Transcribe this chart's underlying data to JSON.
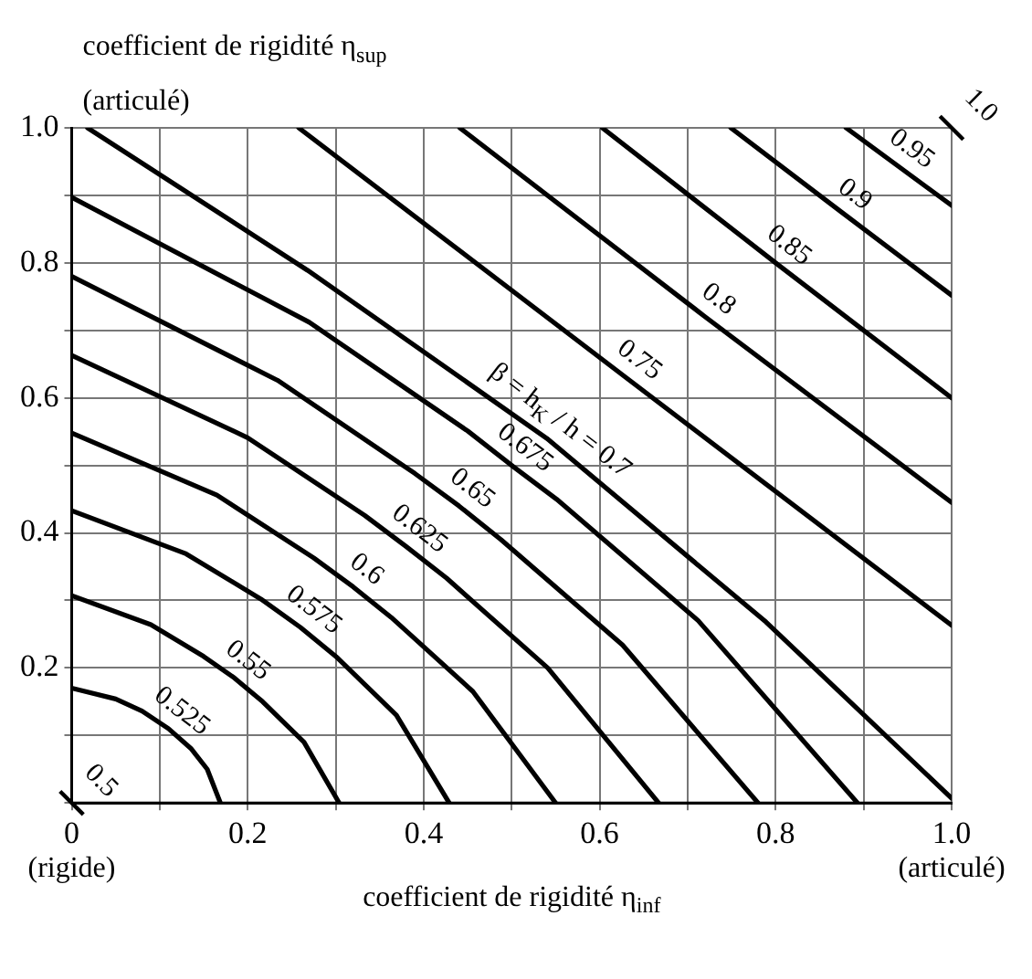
{
  "chart_data": {
    "type": "line",
    "xlabel": "coefficient de rigidité η$_{inf}$",
    "ylabel": "coefficient de rigidité η$_{sup}$",
    "annotations": [
      "(articulé)",
      "(rigide)",
      "(articulé)"
    ],
    "xlim": [
      0,
      1
    ],
    "ylim": [
      0,
      1
    ],
    "xticks": [
      0,
      {
        "value": 0.1,
        "label": null
      },
      0.2,
      {
        "value": 0.3,
        "label": null
      },
      0.4,
      {
        "value": 0.5,
        "label": null
      },
      0.6,
      {
        "value": 0.7,
        "label": null
      },
      0.8,
      {
        "value": 0.9,
        "label": null
      },
      {
        "value": 1,
        "label": "1.0"
      }
    ],
    "yticks": [
      {
        "value": 0,
        "label": null
      },
      {
        "value": 0.1,
        "label": null
      },
      0.2,
      {
        "value": 0.3,
        "label": null
      },
      0.4,
      {
        "value": 0.5,
        "label": null
      },
      0.6,
      {
        "value": 0.7,
        "label": null
      },
      0.8,
      {
        "value": 0.9,
        "label": null
      },
      {
        "value": 1,
        "label": "1.0"
      }
    ],
    "grid": true,
    "legend": false,
    "marker": "none",
    "line_style": "solid",
    "series": [
      {
        "name": "0.5",
        "type": "scatter",
        "marker": "cross",
        "color": "#000000",
        "x": [
          0
        ],
        "values": [
          0
        ]
      },
      {
        "name": "0.525",
        "color": "#000000",
        "x": [
          0,
          0.05,
          0.08,
          0.11,
          0.136,
          0.154,
          0.169
        ],
        "values": [
          0.17,
          0.154,
          0.136,
          0.11,
          0.08,
          0.05,
          0
        ]
      },
      {
        "name": "0.55",
        "color": "#000000",
        "x": [
          0,
          0.09,
          0.15,
          0.185,
          0.217,
          0.264,
          0.304
        ],
        "values": [
          0.307,
          0.264,
          0.217,
          0.185,
          0.15,
          0.09,
          0
        ]
      },
      {
        "name": "0.575",
        "color": "#000000",
        "x": [
          0,
          0.13,
          0.215,
          0.26,
          0.302,
          0.369,
          0.429
        ],
        "values": [
          0.433,
          0.369,
          0.302,
          0.26,
          0.215,
          0.13,
          0
        ]
      },
      {
        "name": "0.6",
        "color": "#000000",
        "x": [
          0,
          0.165,
          0.275,
          0.32,
          0.363,
          0.456,
          0.55
        ],
        "values": [
          0.548,
          0.456,
          0.363,
          0.32,
          0.275,
          0.165,
          0
        ]
      },
      {
        "name": "0.625",
        "color": "#000000",
        "x": [
          0,
          0.2,
          0.333,
          0.38,
          0.426,
          0.541,
          0.667
        ],
        "values": [
          0.663,
          0.541,
          0.426,
          0.38,
          0.333,
          0.2,
          0
        ]
      },
      {
        "name": "0.65",
        "color": "#000000",
        "x": [
          0,
          0.234,
          0.39,
          0.44,
          0.488,
          0.626,
          0.78
        ],
        "values": [
          0.78,
          0.626,
          0.488,
          0.44,
          0.39,
          0.234,
          0
        ]
      },
      {
        "name": "0.675",
        "color": "#000000",
        "x": [
          0,
          0.27,
          0.45,
          0.5,
          0.551,
          0.712,
          0.893
        ],
        "values": [
          0.897,
          0.712,
          0.551,
          0.5,
          0.45,
          0.27,
          0
        ]
      },
      {
        "name": "β = h$_{K}$ / h = 0.7",
        "color": "#000000",
        "x": [
          0.018,
          0.268,
          0.54,
          0.789,
          1
        ],
        "values": [
          1,
          0.789,
          0.54,
          0.268,
          0.007
        ]
      },
      {
        "name": "0.75",
        "color": "#000000",
        "x": [
          0.258,
          0.63,
          1
        ],
        "values": [
          1,
          0.63,
          0.263
        ]
      },
      {
        "name": "0.8",
        "color": "#000000",
        "x": [
          0.441,
          0.72,
          1
        ],
        "values": [
          1,
          0.72,
          0.445
        ]
      },
      {
        "name": "0.85",
        "color": "#000000",
        "x": [
          0.603,
          0.8,
          1
        ],
        "values": [
          1,
          0.8,
          0.6
        ]
      },
      {
        "name": "0.9",
        "color": "#000000",
        "x": [
          0.749,
          0.875,
          1
        ],
        "values": [
          1,
          0.875,
          0.752
        ]
      },
      {
        "name": "0.95",
        "color": "#000000",
        "x": [
          0.88,
          1
        ],
        "values": [
          1,
          0.885
        ]
      },
      {
        "name": "1.0",
        "type": "scatter",
        "marker": "cross",
        "color": "#000000",
        "x": [
          1
        ],
        "values": [
          1
        ]
      }
    ]
  }
}
